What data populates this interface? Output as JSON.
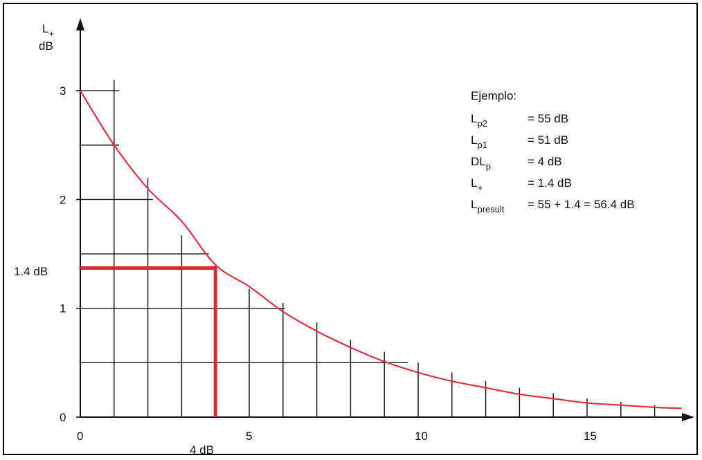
{
  "chart_data": {
    "type": "line",
    "title": "",
    "ylabel_main": "L",
    "ylabel_sub": "+",
    "ylabel_unit": "dB",
    "xlabel": "",
    "xlim": [
      0,
      18
    ],
    "ylim": [
      0,
      3
    ],
    "x_ticks": [
      "0",
      "5",
      "10",
      "15"
    ],
    "x_tick_values": [
      0,
      5,
      10,
      15
    ],
    "y_ticks": [
      "0",
      "1",
      "2",
      "3"
    ],
    "y_tick_values": [
      0,
      1,
      2,
      3
    ],
    "curve_color": "#e0303f",
    "marker_color": "#d9283a",
    "series": [
      {
        "x": [
          0,
          1,
          2,
          3,
          4,
          5,
          6,
          7,
          8,
          9,
          10,
          11,
          12,
          13,
          14,
          15,
          16,
          17,
          17.8
        ],
        "values": [
          3.0,
          2.5,
          2.1,
          1.8,
          1.4,
          1.2,
          0.97,
          0.79,
          0.64,
          0.51,
          0.41,
          0.33,
          0.27,
          0.21,
          0.17,
          0.13,
          0.11,
          0.09,
          0.08
        ]
      }
    ],
    "annotations": {
      "marker_y_label": "1.4 dB",
      "marker_x_label": "4 dB",
      "marker_x": 4,
      "marker_y": 1.4
    },
    "example_box": {
      "heading": "Ejemplo:",
      "rows": [
        {
          "main": "L",
          "sub": "p2",
          "value": "= 55 dB"
        },
        {
          "main": "L",
          "sub": "p1",
          "value": "= 51 dB"
        },
        {
          "main": "DL",
          "sub": "p",
          "value": "=   4 dB"
        },
        {
          "main": "L",
          "sub": "+",
          "value": "= 1.4 dB"
        },
        {
          "main": "L",
          "sub": "presult",
          "value": "= 55 + 1.4 = 56.4 dB"
        }
      ]
    }
  }
}
